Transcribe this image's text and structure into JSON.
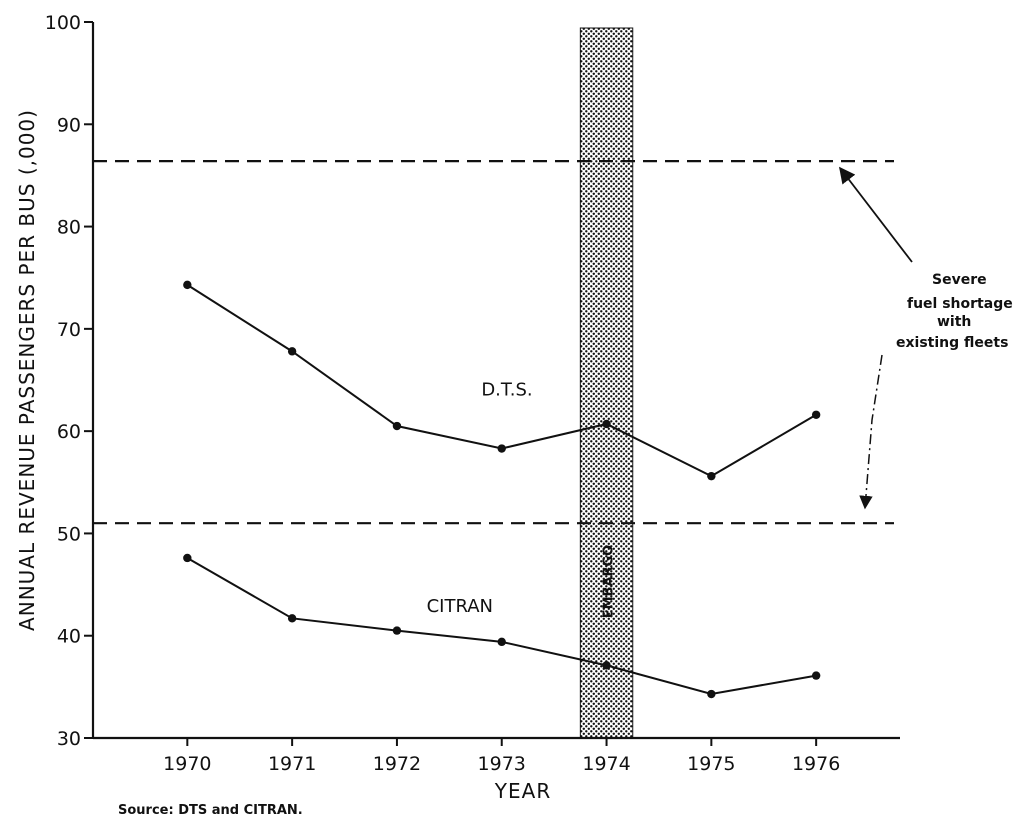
{
  "chart_data": {
    "type": "line",
    "title": "",
    "xlabel": "YEAR",
    "ylabel": "ANNUAL REVENUE PASSENGERS PER BUS (,000)",
    "x": [
      1970,
      1971,
      1972,
      1973,
      1974,
      1975,
      1976
    ],
    "x_tick_labels": [
      "1970",
      "1971",
      "1972",
      "1973",
      "1974",
      "1975",
      "1976"
    ],
    "y_ticks": [
      30,
      40,
      50,
      60,
      70,
      80,
      90,
      100
    ],
    "y_tick_labels": [
      "30",
      "40",
      "50",
      "60",
      "70",
      "80",
      "90",
      "100"
    ],
    "xlim": [
      1969.1,
      1976.8
    ],
    "ylim": [
      30,
      100
    ],
    "grid": false,
    "series": [
      {
        "name": "D.T.S.",
        "values": [
          74.3,
          67.8,
          60.5,
          58.3,
          60.7,
          55.6,
          61.6
        ]
      },
      {
        "name": "CITRAN",
        "values": [
          47.6,
          41.7,
          40.5,
          39.4,
          37.1,
          34.3,
          36.1
        ]
      }
    ],
    "reference_lines": [
      {
        "y": 86.4
      },
      {
        "y": 51.0
      }
    ],
    "shaded_band": {
      "label": "EMBARGO",
      "x_start": 1973.75,
      "x_end": 1974.25
    },
    "annotation": {
      "lines": [
        "Severe",
        "fuel shortage",
        "with",
        "existing fleets"
      ]
    },
    "source_note": "Source:  DTS and CITRAN."
  }
}
